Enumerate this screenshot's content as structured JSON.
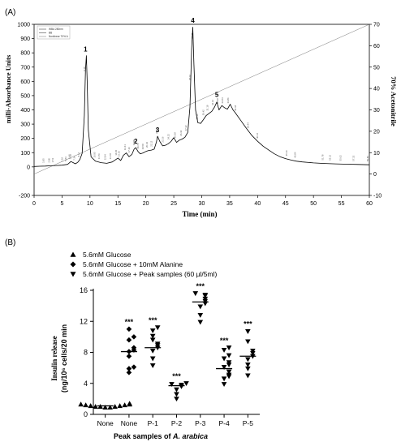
{
  "panel_a": {
    "label": "(A)",
    "legend_lines": [
      "WBA 280nm",
      "BB",
      "Nonlinear 70% A"
    ],
    "peak_labels": [
      "1",
      "2",
      "3",
      "4",
      "5"
    ],
    "minor_peak_labels": [
      "1.85",
      "2.80",
      "3.51",
      "5.18",
      "5.84",
      "6.48",
      "6.72",
      "7.34",
      "8.12",
      "9.18",
      "10.95",
      "11.76",
      "12.84",
      "13.78",
      "14.82",
      "15.36",
      "16.41",
      "17.16",
      "17.98",
      "18.72",
      "19.58",
      "20.34",
      "21.12",
      "22.08",
      "23.16",
      "24.22",
      "25.38",
      "26.44",
      "27.32",
      "28.02",
      "28.48",
      "29.36",
      "30.42",
      "31.18",
      "32.12",
      "32.96",
      "33.84",
      "34.86",
      "36.18",
      "38.44",
      "40.12",
      "45.36",
      "46.84",
      "51.78",
      "53.12",
      "55.02",
      "57.32",
      "59.86"
    ],
    "chart_data": {
      "type": "line",
      "title": "",
      "xlabel": "Time (min)",
      "ylabel_left": "milli-Absorbance Units",
      "ylabel_right": "70% Acetonitrile",
      "xlim": [
        0,
        60
      ],
      "ylim_left": [
        -200,
        1000
      ],
      "ylim_right": [
        -10,
        70
      ],
      "xticks": [
        0,
        5,
        10,
        15,
        20,
        25,
        30,
        35,
        40,
        45,
        50,
        55,
        60
      ],
      "yticks_left": [
        -200,
        0,
        100,
        200,
        300,
        400,
        500,
        600,
        700,
        800,
        900,
        1000
      ],
      "yticks_right": [
        -10,
        0,
        10,
        20,
        30,
        40,
        50,
        60,
        70
      ],
      "grid": false,
      "series": [
        {
          "x": [
            0,
            1,
            2,
            3,
            4,
            5,
            6,
            6.6,
            7.0,
            7.4,
            7.8,
            8.2,
            8.6,
            9.0,
            9.2,
            9.35,
            9.5,
            9.7,
            10.2,
            11,
            12,
            13,
            14,
            15,
            15.5,
            16,
            16.5,
            17,
            17.5,
            17.9,
            18.2,
            18.6,
            19,
            19.5,
            20,
            20.5,
            21,
            21.5,
            21.9,
            22.1,
            22.5,
            23,
            23.5,
            24,
            24.5,
            25,
            25.5,
            26,
            26.5,
            27,
            27.5,
            27.9,
            28.2,
            28.4,
            28.6,
            28.9,
            29.3,
            29.8,
            30.3,
            30.8,
            31.3,
            31.8,
            32.3,
            32.7,
            33.1,
            33.6,
            34.1,
            34.6,
            35.1,
            35.6,
            36,
            37,
            38,
            39,
            40,
            41,
            42,
            43,
            44,
            45,
            46,
            47,
            48,
            50,
            52,
            54,
            56,
            58,
            60
          ],
          "y": [
            3,
            5,
            6,
            8,
            10,
            12,
            18,
            38,
            30,
            22,
            32,
            52,
            95,
            360,
            680,
            780,
            600,
            260,
            70,
            40,
            30,
            25,
            35,
            62,
            45,
            82,
            98,
            72,
            88,
            125,
            135,
            108,
            92,
            98,
            108,
            115,
            118,
            125,
            175,
            215,
            178,
            148,
            152,
            162,
            178,
            205,
            172,
            188,
            195,
            208,
            242,
            420,
            830,
            980,
            720,
            400,
            310,
            305,
            332,
            360,
            375,
            390,
            420,
            455,
            400,
            430,
            415,
            405,
            440,
            400,
            380,
            325,
            270,
            220,
            180,
            145,
            118,
            92,
            72,
            58,
            48,
            40,
            35,
            28,
            24,
            21,
            19,
            17,
            15
          ]
        }
      ],
      "annotations": [
        {
          "text": "1",
          "x": 9.2,
          "y": 810
        },
        {
          "text": "2",
          "x": 18.2,
          "y": 165
        },
        {
          "text": "3",
          "x": 22.1,
          "y": 245
        },
        {
          "text": "4",
          "x": 28.4,
          "y": 1010
        },
        {
          "text": "5",
          "x": 32.7,
          "y": 490
        }
      ]
    }
  },
  "panel_b": {
    "label": "(B)",
    "legend": [
      {
        "marker": "triangle-up",
        "text": "5.6mM Glucose"
      },
      {
        "marker": "diamond",
        "text": "5.6mM Glucose + 10mM Alanine"
      },
      {
        "marker": "triangle-down",
        "text": "5.6mM Glucose + Peak samples (60 µl/5ml)"
      }
    ],
    "significance": "***",
    "chart_data": {
      "type": "scatter",
      "title": "",
      "ylabel": "Insulin release (ng/10⁶ cells/20 min",
      "ylabel_line1": "Insulin release",
      "ylabel_line2": "(ng/10⁶ cells/20 min",
      "xlabel_prefix": "Peak samples of ",
      "xlabel_italic": "A. arabica",
      "ylim": [
        0,
        16
      ],
      "yticks": [
        0,
        4,
        8,
        12,
        16
      ],
      "categories": [
        "None",
        "None",
        "P-1",
        "P-2",
        "P-3",
        "P-4",
        "P-5"
      ],
      "groups": [
        {
          "category": "None",
          "marker": "triangle-up",
          "mean": 1.1,
          "points": [
            0.9,
            1.0,
            1.1,
            1.2,
            1.3,
            1.0,
            1.1,
            1.2,
            0.9,
            1.3,
            1.0,
            1.4
          ],
          "significant": false
        },
        {
          "category": "None",
          "marker": "diamond",
          "mean": 8.1,
          "points": [
            5.4,
            5.9,
            6.1,
            7.5,
            8.1,
            8.3,
            8.6,
            9.6,
            10.0,
            11.0
          ],
          "significant": true
        },
        {
          "category": "P-1",
          "marker": "triangle-down",
          "mean": 8.6,
          "points": [
            6.3,
            7.2,
            8.2,
            8.6,
            8.9,
            9.1,
            9.6,
            10.1,
            10.8,
            11.2
          ],
          "significant": true
        },
        {
          "category": "P-2",
          "marker": "triangle-down",
          "mean": 3.7,
          "points": [
            2.0,
            2.6,
            3.2,
            3.6,
            3.8,
            3.9,
            4.0
          ],
          "significant": true
        },
        {
          "category": "P-3",
          "marker": "triangle-down",
          "mean": 14.5,
          "points": [
            11.9,
            12.8,
            13.9,
            14.3,
            14.6,
            14.9,
            15.3,
            15.4,
            15.6
          ],
          "significant": true
        },
        {
          "category": "P-4",
          "marker": "triangle-down",
          "mean": 5.9,
          "points": [
            3.9,
            4.6,
            4.9,
            5.1,
            5.5,
            6.1,
            6.4,
            6.7,
            7.2,
            7.6,
            8.3,
            8.6
          ],
          "significant": true
        },
        {
          "category": "P-5",
          "marker": "triangle-down",
          "mean": 7.5,
          "points": [
            5.0,
            5.9,
            6.4,
            7.1,
            7.5,
            7.9,
            8.2,
            9.4,
            10.7
          ],
          "significant": true
        }
      ]
    }
  }
}
